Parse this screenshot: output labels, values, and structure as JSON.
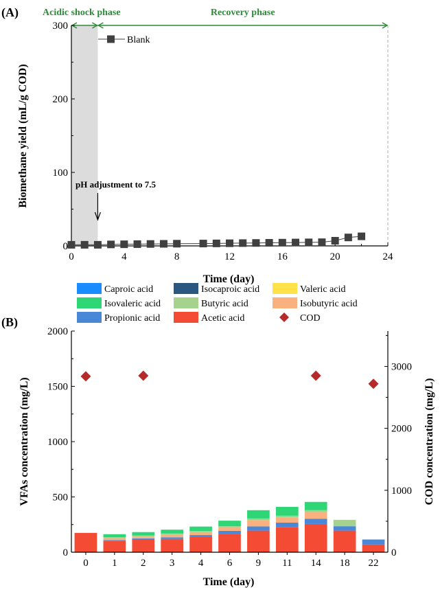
{
  "chart_data": [
    {
      "type": "line",
      "panel_label": "(A)",
      "xlabel": "Time (day)",
      "ylabel": "Biomethane yield (mL/g COD)",
      "xlim": [
        0,
        24
      ],
      "ylim": [
        0,
        300
      ],
      "x_ticks": [
        0,
        4,
        8,
        12,
        16,
        20,
        24
      ],
      "y_ticks": [
        0,
        100,
        200,
        300
      ],
      "grid": false,
      "legend_position": "top-left",
      "series": [
        {
          "name": "Blank",
          "color": "#404040",
          "marker": "square",
          "x": [
            0,
            1,
            2,
            3,
            4,
            5,
            6,
            7,
            8,
            10,
            11,
            12,
            13,
            14,
            15,
            16,
            17,
            18,
            19,
            20,
            21,
            22
          ],
          "y": [
            1.5,
            1.5,
            1.5,
            2,
            2.2,
            2.4,
            2.6,
            2.8,
            3,
            3.2,
            3.4,
            3.6,
            3.8,
            4,
            4.2,
            4.4,
            4.6,
            4.8,
            5,
            7,
            11.5,
            13
          ]
        }
      ],
      "phases": [
        {
          "label": "Acidic shock phase",
          "x_start": 0,
          "x_end": 2,
          "color": "#2e8b3a",
          "shaded": true,
          "shade_color": "#dcdcdc"
        },
        {
          "label": "Recovery phase",
          "x_start": 2,
          "x_end": 24,
          "color": "#2e8b3a",
          "shaded": false
        }
      ],
      "annotations": [
        {
          "text": "pH adjustment to 7.5",
          "x": 2,
          "y": 100
        }
      ]
    },
    {
      "type": "bar",
      "stacked": true,
      "panel_label": "(B)",
      "xlabel": "Time (day)",
      "ylabel": "VFAs concentration (mg/L)",
      "ylabel_right": "COD concentration (mg/L)",
      "categories": [
        "0",
        "1",
        "2",
        "3",
        "4",
        "6",
        "9",
        "11",
        "14",
        "18",
        "22"
      ],
      "ylim": [
        0,
        2000
      ],
      "ylim_right": [
        0,
        3571
      ],
      "y_ticks": [
        0,
        500,
        1000,
        1500,
        2000
      ],
      "y_ticks_right": [
        0,
        1000,
        2000,
        3000
      ],
      "grid": false,
      "legend_position": "top",
      "series": [
        {
          "name": "Acetic acid",
          "color": "#f44b35",
          "values": [
            175,
            100,
            115,
            120,
            140,
            165,
            195,
            225,
            255,
            195,
            70
          ]
        },
        {
          "name": "Propionic acid",
          "color": "#4a87d6",
          "values": [
            0,
            10,
            10,
            15,
            15,
            28,
            38,
            42,
            48,
            40,
            45
          ]
        },
        {
          "name": "Isobutyric acid",
          "color": "#f9b27f",
          "values": [
            0,
            15,
            17,
            24,
            27,
            30,
            57,
            48,
            60,
            0,
            0
          ]
        },
        {
          "name": "Butyric acid",
          "color": "#a5d38e",
          "values": [
            0,
            10,
            10,
            10,
            10,
            12,
            15,
            15,
            17,
            58,
            0
          ]
        },
        {
          "name": "Isovaleric acid",
          "color": "#2fd676",
          "values": [
            0,
            28,
            30,
            35,
            40,
            50,
            75,
            80,
            75,
            0,
            0
          ]
        },
        {
          "name": "Valeric acid",
          "color": "#ffe24a",
          "values": [
            0,
            0,
            0,
            0,
            0,
            0,
            0,
            0,
            0,
            0,
            0
          ]
        },
        {
          "name": "Isocaproic acid",
          "color": "#2a5780",
          "values": [
            0,
            0,
            0,
            0,
            0,
            0,
            0,
            0,
            0,
            0,
            0
          ]
        },
        {
          "name": "Caproic acid",
          "color": "#1a8cff",
          "values": [
            0,
            0,
            0,
            0,
            0,
            0,
            0,
            0,
            0,
            0,
            0
          ]
        }
      ],
      "cod_series": {
        "name": "COD",
        "color": "#b72a2a",
        "marker": "diamond",
        "categories": [
          "0",
          "2",
          "14",
          "22"
        ],
        "values": [
          2840,
          2850,
          2850,
          2720
        ]
      },
      "legend_order": [
        "Caproic acid",
        "Isocaproic acid",
        "Valeric acid",
        "Isovaleric acid",
        "Butyric acid",
        "Isobutyric acid",
        "Propionic acid",
        "Acetic acid",
        "COD"
      ]
    }
  ]
}
